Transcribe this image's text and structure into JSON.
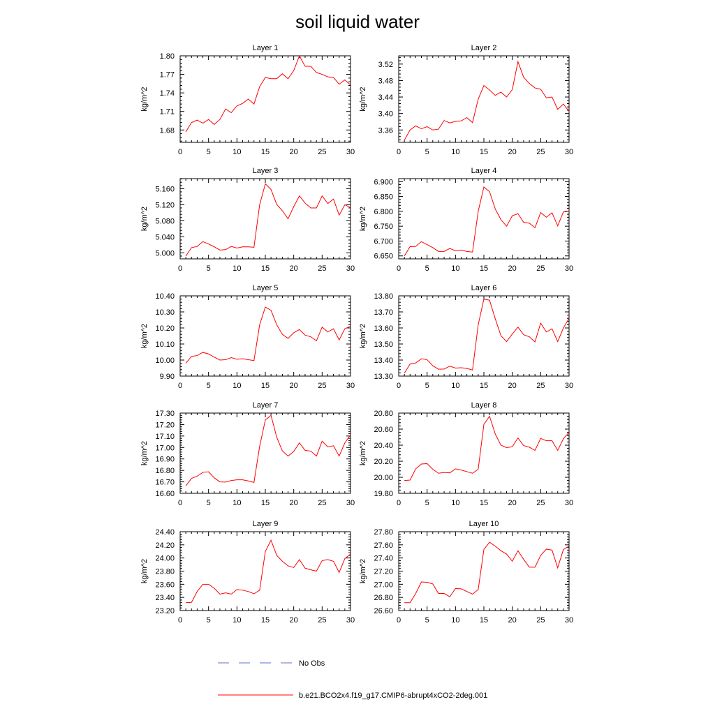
{
  "figure": {
    "title": "soil liquid water"
  },
  "legend": {
    "entries": [
      {
        "label": "No Obs",
        "style": "dashed",
        "color": "#5a6fd6"
      },
      {
        "label": "b.e21.BCO2x4.f19_g17.CMIP6-abrupt4xCO2-2deg.001",
        "style": "solid",
        "color": "#ff0000"
      }
    ]
  },
  "colors": {
    "series": "#ff0000",
    "obs": "#5a6fd6"
  },
  "chart_data": [
    {
      "type": "line",
      "title": "Layer 1",
      "ylabel": "kg/m^2",
      "xlabel": "",
      "x_ticks": [
        "0",
        "5",
        "10",
        "15",
        "20",
        "25",
        "30"
      ],
      "xlim": [
        0,
        30
      ],
      "ylim": [
        1.66,
        1.8
      ],
      "y_ticks": [
        1.68,
        1.71,
        1.74,
        1.77,
        1.8
      ],
      "y_tick_labels": [
        "1.68",
        "1.71",
        "1.74",
        "1.77",
        "1.80"
      ],
      "series": [
        {
          "x": [
            1,
            2,
            3,
            4,
            5,
            6,
            7,
            8,
            9,
            10,
            11,
            12,
            13,
            14,
            15,
            16,
            17,
            18,
            19,
            20,
            21,
            22,
            23,
            24,
            25,
            26,
            27,
            28,
            29,
            30
          ],
          "values": [
            1.677,
            1.692,
            1.696,
            1.691,
            1.697,
            1.689,
            1.697,
            1.714,
            1.708,
            1.719,
            1.723,
            1.73,
            1.722,
            1.75,
            1.765,
            1.763,
            1.763,
            1.771,
            1.763,
            1.776,
            1.8,
            1.783,
            1.783,
            1.773,
            1.77,
            1.766,
            1.765,
            1.754,
            1.761,
            1.753
          ]
        }
      ]
    },
    {
      "type": "line",
      "title": "Layer 2",
      "ylabel": "kg/m^2",
      "xlabel": "",
      "x_ticks": [
        "0",
        "5",
        "10",
        "15",
        "20",
        "25",
        "30"
      ],
      "xlim": [
        0,
        30
      ],
      "ylim": [
        3.33,
        3.54
      ],
      "y_ticks": [
        3.36,
        3.4,
        3.44,
        3.48,
        3.52
      ],
      "y_tick_labels": [
        "3.36",
        "3.40",
        "3.44",
        "3.48",
        "3.52"
      ],
      "series": [
        {
          "x": [
            1,
            2,
            3,
            4,
            5,
            6,
            7,
            8,
            9,
            10,
            11,
            12,
            13,
            14,
            15,
            16,
            17,
            18,
            19,
            20,
            21,
            22,
            23,
            24,
            25,
            26,
            27,
            28,
            29,
            30
          ],
          "values": [
            3.335,
            3.36,
            3.37,
            3.363,
            3.368,
            3.36,
            3.362,
            3.383,
            3.377,
            3.381,
            3.382,
            3.39,
            3.378,
            3.435,
            3.468,
            3.457,
            3.444,
            3.452,
            3.44,
            3.458,
            3.526,
            3.488,
            3.473,
            3.462,
            3.459,
            3.438,
            3.44,
            3.41,
            3.423,
            3.405
          ]
        }
      ]
    },
    {
      "type": "line",
      "title": "Layer 3",
      "ylabel": "kg/m^2",
      "xlabel": "",
      "x_ticks": [
        "0",
        "5",
        "10",
        "15",
        "20",
        "25",
        "30"
      ],
      "xlim": [
        0,
        30
      ],
      "ylim": [
        4.985,
        5.185
      ],
      "y_ticks": [
        5.0,
        5.04,
        5.08,
        5.12,
        5.16
      ],
      "y_tick_labels": [
        "5.000",
        "5.040",
        "5.080",
        "5.120",
        "5.160"
      ],
      "series": [
        {
          "x": [
            1,
            2,
            3,
            4,
            5,
            6,
            7,
            8,
            9,
            10,
            11,
            12,
            13,
            14,
            15,
            16,
            17,
            18,
            19,
            20,
            21,
            22,
            23,
            24,
            25,
            26,
            27,
            28,
            29,
            30
          ],
          "values": [
            4.992,
            5.013,
            5.016,
            5.028,
            5.022,
            5.015,
            5.007,
            5.008,
            5.016,
            5.012,
            5.015,
            5.015,
            5.014,
            5.12,
            5.172,
            5.158,
            5.121,
            5.105,
            5.085,
            5.115,
            5.142,
            5.124,
            5.112,
            5.112,
            5.142,
            5.123,
            5.134,
            5.094,
            5.12,
            5.113
          ]
        }
      ]
    },
    {
      "type": "line",
      "title": "Layer 4",
      "ylabel": "kg/m^2",
      "xlabel": "",
      "x_ticks": [
        "0",
        "5",
        "10",
        "15",
        "20",
        "25",
        "30"
      ],
      "xlim": [
        0,
        30
      ],
      "ylim": [
        6.64,
        6.91
      ],
      "y_ticks": [
        6.65,
        6.7,
        6.75,
        6.8,
        6.85,
        6.9
      ],
      "y_tick_labels": [
        "6.650",
        "6.700",
        "6.750",
        "6.800",
        "6.850",
        "6.900"
      ],
      "series": [
        {
          "x": [
            1,
            2,
            3,
            4,
            5,
            6,
            7,
            8,
            9,
            10,
            11,
            12,
            13,
            14,
            15,
            16,
            17,
            18,
            19,
            20,
            21,
            22,
            23,
            24,
            25,
            26,
            27,
            28,
            29,
            30
          ],
          "values": [
            6.65,
            6.681,
            6.682,
            6.698,
            6.688,
            6.678,
            6.665,
            6.665,
            6.675,
            6.667,
            6.67,
            6.665,
            6.663,
            6.8,
            6.882,
            6.866,
            6.808,
            6.772,
            6.75,
            6.785,
            6.792,
            6.763,
            6.76,
            6.745,
            6.796,
            6.78,
            6.795,
            6.751,
            6.798,
            6.8
          ]
        }
      ]
    },
    {
      "type": "line",
      "title": "Layer 5",
      "ylabel": "kg/m^2",
      "xlabel": "",
      "x_ticks": [
        "0",
        "5",
        "10",
        "15",
        "20",
        "25",
        "30"
      ],
      "xlim": [
        0,
        30
      ],
      "ylim": [
        9.9,
        10.4
      ],
      "y_ticks": [
        9.9,
        10.0,
        10.1,
        10.2,
        10.3,
        10.4
      ],
      "y_tick_labels": [
        "9.90",
        "10.00",
        "10.10",
        "10.20",
        "10.30",
        "10.40"
      ],
      "series": [
        {
          "x": [
            1,
            2,
            3,
            4,
            5,
            6,
            7,
            8,
            9,
            10,
            11,
            12,
            13,
            14,
            15,
            16,
            17,
            18,
            19,
            20,
            21,
            22,
            23,
            24,
            25,
            26,
            27,
            28,
            29,
            30
          ],
          "values": [
            9.98,
            10.023,
            10.028,
            10.048,
            10.038,
            10.018,
            10.0,
            10.002,
            10.015,
            10.005,
            10.008,
            10.002,
            9.997,
            10.22,
            10.33,
            10.31,
            10.22,
            10.16,
            10.135,
            10.17,
            10.19,
            10.155,
            10.145,
            10.12,
            10.205,
            10.175,
            10.195,
            10.125,
            10.195,
            10.21
          ]
        }
      ]
    },
    {
      "type": "line",
      "title": "Layer 6",
      "ylabel": "kg/m^2",
      "xlabel": "",
      "x_ticks": [
        "0",
        "5",
        "10",
        "15",
        "20",
        "25",
        "30"
      ],
      "xlim": [
        0,
        30
      ],
      "ylim": [
        13.3,
        13.8
      ],
      "y_ticks": [
        13.3,
        13.4,
        13.5,
        13.6,
        13.7,
        13.8
      ],
      "y_tick_labels": [
        "13.30",
        "13.40",
        "13.50",
        "13.60",
        "13.70",
        "13.80"
      ],
      "series": [
        {
          "x": [
            1,
            2,
            3,
            4,
            5,
            6,
            7,
            8,
            9,
            10,
            11,
            12,
            13,
            14,
            15,
            16,
            17,
            18,
            19,
            20,
            21,
            22,
            23,
            24,
            25,
            26,
            27,
            28,
            29,
            30
          ],
          "values": [
            13.318,
            13.375,
            13.382,
            13.408,
            13.402,
            13.365,
            13.343,
            13.344,
            13.362,
            13.35,
            13.352,
            13.348,
            13.338,
            13.62,
            13.78,
            13.773,
            13.658,
            13.552,
            13.515,
            13.562,
            13.605,
            13.558,
            13.545,
            13.513,
            13.63,
            13.575,
            13.595,
            13.515,
            13.6,
            13.66
          ]
        }
      ]
    },
    {
      "type": "line",
      "title": "Layer 7",
      "ylabel": "kg/m^2",
      "xlabel": "",
      "x_ticks": [
        "0",
        "5",
        "10",
        "15",
        "20",
        "25",
        "30"
      ],
      "xlim": [
        0,
        30
      ],
      "ylim": [
        16.6,
        17.3
      ],
      "y_ticks": [
        16.6,
        16.7,
        16.8,
        16.9,
        17.0,
        17.1,
        17.2,
        17.3
      ],
      "y_tick_labels": [
        "16.60",
        "16.70",
        "16.80",
        "16.90",
        "17.00",
        "17.10",
        "17.20",
        "17.30"
      ],
      "series": [
        {
          "x": [
            1,
            2,
            3,
            4,
            5,
            6,
            7,
            8,
            9,
            10,
            11,
            12,
            13,
            14,
            15,
            16,
            17,
            18,
            19,
            20,
            21,
            22,
            23,
            24,
            25,
            26,
            27,
            28,
            29,
            30
          ],
          "values": [
            16.665,
            16.73,
            16.75,
            16.783,
            16.788,
            16.735,
            16.7,
            16.698,
            16.712,
            16.718,
            16.718,
            16.708,
            16.695,
            17.01,
            17.24,
            17.28,
            17.09,
            16.97,
            16.925,
            16.965,
            17.04,
            16.975,
            16.968,
            16.925,
            17.055,
            17.005,
            17.015,
            16.925,
            17.04,
            17.11
          ]
        }
      ]
    },
    {
      "type": "line",
      "title": "Layer 8",
      "ylabel": "kg/m^2",
      "xlabel": "",
      "x_ticks": [
        "0",
        "5",
        "10",
        "15",
        "20",
        "25",
        "30"
      ],
      "xlim": [
        0,
        30
      ],
      "ylim": [
        19.8,
        20.8
      ],
      "y_ticks": [
        19.8,
        20.0,
        20.2,
        20.4,
        20.6,
        20.8
      ],
      "y_tick_labels": [
        "19.80",
        "20.00",
        "20.20",
        "20.40",
        "20.60",
        "20.80"
      ],
      "series": [
        {
          "x": [
            1,
            2,
            3,
            4,
            5,
            6,
            7,
            8,
            9,
            10,
            11,
            12,
            13,
            14,
            15,
            16,
            17,
            18,
            19,
            20,
            21,
            22,
            23,
            24,
            25,
            26,
            27,
            28,
            29,
            30
          ],
          "values": [
            19.96,
            19.965,
            20.105,
            20.165,
            20.17,
            20.1,
            20.05,
            20.06,
            20.055,
            20.105,
            20.09,
            20.07,
            20.05,
            20.1,
            20.66,
            20.76,
            20.54,
            20.4,
            20.37,
            20.38,
            20.49,
            20.395,
            20.375,
            20.335,
            20.485,
            20.455,
            20.455,
            20.335,
            20.48,
            20.56
          ]
        }
      ]
    },
    {
      "type": "line",
      "title": "Layer 9",
      "ylabel": "kg/m^2",
      "xlabel": "",
      "x_ticks": [
        "0",
        "5",
        "10",
        "15",
        "20",
        "25",
        "30"
      ],
      "xlim": [
        0,
        30
      ],
      "ylim": [
        23.2,
        24.4
      ],
      "y_ticks": [
        23.2,
        23.4,
        23.6,
        23.8,
        24.0,
        24.2,
        24.4
      ],
      "y_tick_labels": [
        "23.20",
        "23.40",
        "23.60",
        "23.80",
        "24.00",
        "24.20",
        "24.40"
      ],
      "series": [
        {
          "x": [
            1,
            2,
            3,
            4,
            5,
            6,
            7,
            8,
            9,
            10,
            11,
            12,
            13,
            14,
            15,
            16,
            17,
            18,
            19,
            20,
            21,
            22,
            23,
            24,
            25,
            26,
            27,
            28,
            29,
            30
          ],
          "values": [
            23.32,
            23.325,
            23.49,
            23.6,
            23.6,
            23.54,
            23.45,
            23.47,
            23.45,
            23.52,
            23.51,
            23.49,
            23.455,
            23.51,
            24.1,
            24.27,
            24.04,
            23.95,
            23.88,
            23.855,
            23.975,
            23.845,
            23.82,
            23.8,
            23.96,
            23.975,
            23.95,
            23.78,
            23.99,
            24.06
          ]
        }
      ]
    },
    {
      "type": "line",
      "title": "Layer 10",
      "ylabel": "kg/m^2",
      "xlabel": "",
      "x_ticks": [
        "0",
        "5",
        "10",
        "15",
        "20",
        "25",
        "30"
      ],
      "xlim": [
        0,
        30
      ],
      "ylim": [
        26.6,
        27.8
      ],
      "y_ticks": [
        26.6,
        26.8,
        27.0,
        27.2,
        27.4,
        27.6,
        27.8
      ],
      "y_tick_labels": [
        "26.60",
        "26.80",
        "27.00",
        "27.20",
        "27.40",
        "27.60",
        "27.80"
      ],
      "series": [
        {
          "x": [
            1,
            2,
            3,
            4,
            5,
            6,
            7,
            8,
            9,
            10,
            11,
            12,
            13,
            14,
            15,
            16,
            17,
            18,
            19,
            20,
            21,
            22,
            23,
            24,
            25,
            26,
            27,
            28,
            29,
            30
          ],
          "values": [
            26.72,
            26.72,
            26.86,
            27.035,
            27.03,
            27.005,
            26.86,
            26.86,
            26.81,
            26.935,
            26.93,
            26.89,
            26.85,
            26.92,
            27.53,
            27.64,
            27.58,
            27.51,
            27.46,
            27.35,
            27.51,
            27.38,
            27.26,
            27.26,
            27.44,
            27.535,
            27.52,
            27.25,
            27.53,
            27.58
          ]
        }
      ]
    }
  ]
}
